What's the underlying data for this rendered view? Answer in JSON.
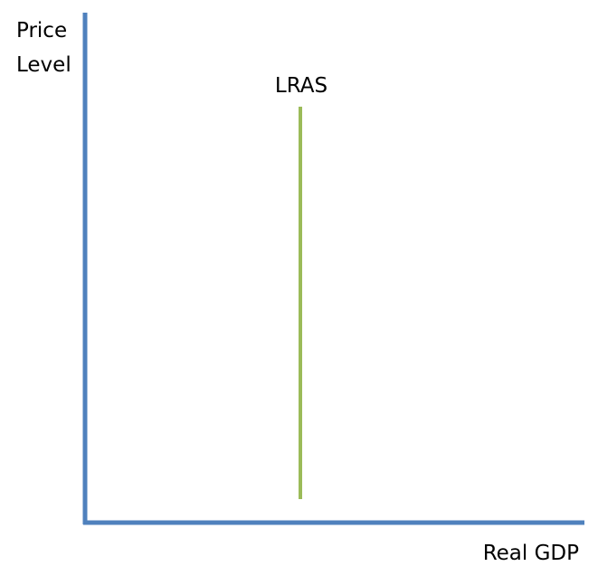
{
  "axes": {
    "y_label": [
      "Price",
      "Level"
    ],
    "x_label": "Real GDP"
  },
  "curves": [
    {
      "label": "LRAS"
    }
  ]
}
